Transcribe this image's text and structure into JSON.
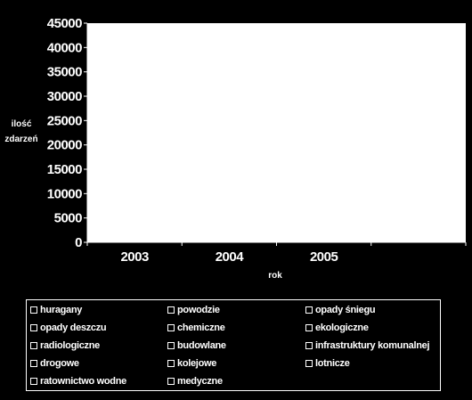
{
  "chart_data": {
    "type": "bar",
    "title": "",
    "xlabel": "rok",
    "ylabel_line1": "ilość",
    "ylabel_line2": "zdarzeń",
    "categories": [
      "2003",
      "2004",
      "2005"
    ],
    "ylim": [
      0,
      45000
    ],
    "yticks": [
      "0",
      "5000",
      "10000",
      "15000",
      "20000",
      "25000",
      "30000",
      "35000",
      "40000",
      "45000"
    ],
    "grid": false,
    "legend_position": "bottom",
    "plot_background": "#ffffff",
    "page_background": "#000000",
    "series": [
      {
        "name": "huragany",
        "values": [
          0,
          0,
          0
        ]
      },
      {
        "name": "powodzie",
        "values": [
          0,
          0,
          0
        ]
      },
      {
        "name": "opady śniegu",
        "values": [
          0,
          0,
          0
        ]
      },
      {
        "name": "opady deszczu",
        "values": [
          0,
          0,
          0
        ]
      },
      {
        "name": "chemiczne",
        "values": [
          0,
          0,
          0
        ]
      },
      {
        "name": "ekologiczne",
        "values": [
          0,
          0,
          0
        ]
      },
      {
        "name": "radiologiczne",
        "values": [
          0,
          0,
          0
        ]
      },
      {
        "name": "budowlane",
        "values": [
          0,
          0,
          0
        ]
      },
      {
        "name": "infrastruktury komunalnej",
        "values": [
          0,
          0,
          0
        ]
      },
      {
        "name": "drogowe",
        "values": [
          0,
          0,
          0
        ]
      },
      {
        "name": "kolejowe",
        "values": [
          0,
          0,
          0
        ]
      },
      {
        "name": "lotnicze",
        "values": [
          0,
          0,
          0
        ]
      },
      {
        "name": "ratownictwo wodne",
        "values": [
          0,
          0,
          0
        ]
      },
      {
        "name": "medyczne",
        "values": [
          0,
          0,
          0
        ]
      }
    ]
  }
}
